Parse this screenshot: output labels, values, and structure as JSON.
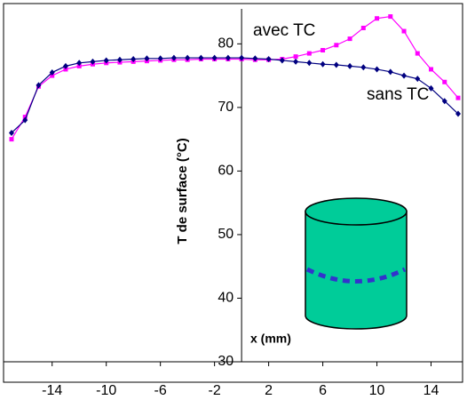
{
  "chart_data": {
    "type": "line",
    "ylabel": "T de surface (°C)",
    "xlabel": "x (mm)",
    "x": [
      -17,
      -16,
      -15,
      -14,
      -13,
      -12,
      -11,
      -10,
      -9,
      -8,
      -7,
      -6,
      -5,
      -4,
      -3,
      -2,
      -1,
      0,
      1,
      2,
      3,
      4,
      5,
      6,
      7,
      8,
      9,
      10,
      11,
      12,
      13,
      14,
      15,
      16
    ],
    "series": [
      {
        "name": "avec TC",
        "color": "#ff00ff",
        "marker": "square",
        "values": [
          65,
          68.5,
          73.3,
          75,
          76,
          76.5,
          76.8,
          77,
          77.1,
          77.2,
          77.3,
          77.4,
          77.5,
          77.5,
          77.6,
          77.6,
          77.6,
          77.6,
          77.5,
          77.5,
          77.6,
          78,
          78.5,
          79,
          79.8,
          80.8,
          82.5,
          84,
          84.3,
          82,
          78.5,
          76,
          74,
          71.5
        ]
      },
      {
        "name": "sans TC",
        "color": "#000080",
        "marker": "diamond",
        "values": [
          66,
          68,
          73.5,
          75.5,
          76.5,
          77,
          77.2,
          77.4,
          77.5,
          77.6,
          77.7,
          77.7,
          77.8,
          77.8,
          77.8,
          77.8,
          77.8,
          77.8,
          77.7,
          77.6,
          77.4,
          77.2,
          77,
          76.8,
          76.7,
          76.5,
          76.3,
          76,
          75.6,
          75,
          74.5,
          73,
          71,
          69
        ]
      }
    ],
    "xlim": [
      -17,
      16
    ],
    "ylim": [
      30,
      85.5
    ],
    "xticks": [
      -14,
      -10,
      -6,
      -2,
      2,
      6,
      10,
      14
    ],
    "yticks": [
      30,
      40,
      50,
      60,
      70,
      80
    ]
  }
}
